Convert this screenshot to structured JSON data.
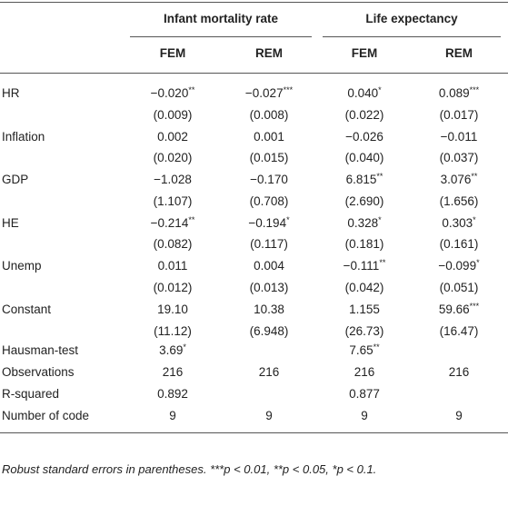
{
  "table": {
    "groups": [
      "Infant mortality rate",
      "Life expectancy"
    ],
    "columns": [
      "FEM",
      "REM",
      "FEM",
      "REM"
    ],
    "rows": [
      {
        "label": "HR",
        "coef": [
          {
            "value": "−0.020",
            "stars": "**"
          },
          {
            "value": "−0.027",
            "stars": "***"
          },
          {
            "value": "0.040",
            "stars": "*"
          },
          {
            "value": "0.089",
            "stars": "***"
          }
        ],
        "se": [
          "(0.009)",
          "(0.008)",
          "(0.022)",
          "(0.017)"
        ]
      },
      {
        "label": "Inflation",
        "coef": [
          {
            "value": "0.002"
          },
          {
            "value": "0.001"
          },
          {
            "value": "−0.026"
          },
          {
            "value": "−0.011"
          }
        ],
        "se": [
          "(0.020)",
          "(0.015)",
          "(0.040)",
          "(0.037)"
        ]
      },
      {
        "label": "GDP",
        "coef": [
          {
            "value": "−1.028"
          },
          {
            "value": "−0.170"
          },
          {
            "value": "6.815",
            "stars": "**"
          },
          {
            "value": "3.076",
            "stars": "**"
          }
        ],
        "se": [
          "(1.107)",
          "(0.708)",
          "(2.690)",
          "(1.656)"
        ]
      },
      {
        "label": "HE",
        "coef": [
          {
            "value": "−0.214",
            "stars": "**"
          },
          {
            "value": "−0.194",
            "stars": "*"
          },
          {
            "value": "0.328",
            "stars": "*"
          },
          {
            "value": "0.303",
            "stars": "*"
          }
        ],
        "se": [
          "(0.082)",
          "(0.117)",
          "(0.181)",
          "(0.161)"
        ]
      },
      {
        "label": "Unemp",
        "coef": [
          {
            "value": "0.011"
          },
          {
            "value": "0.004"
          },
          {
            "value": "−0.111",
            "stars": "**"
          },
          {
            "value": "−0.099",
            "stars": "*"
          }
        ],
        "se": [
          "(0.012)",
          "(0.013)",
          "(0.042)",
          "(0.051)"
        ]
      },
      {
        "label": "Constant",
        "coef": [
          {
            "value": "19.10"
          },
          {
            "value": "10.38"
          },
          {
            "value": "1.155"
          },
          {
            "value": "59.66",
            "stars": "***"
          }
        ],
        "se": [
          "(11.12)",
          "(6.948)",
          "(26.73)",
          "(16.47)"
        ]
      }
    ],
    "stats": [
      {
        "label": "Hausman-test",
        "cells": [
          {
            "value": "3.69",
            "stars": "*"
          },
          null,
          {
            "value": "7.65",
            "stars": "**"
          },
          null
        ]
      },
      {
        "label": "Observations",
        "cells": [
          {
            "value": "216"
          },
          {
            "value": "216"
          },
          {
            "value": "216"
          },
          {
            "value": "216"
          }
        ]
      },
      {
        "label": "R-squared",
        "cells": [
          {
            "value": "0.892"
          },
          null,
          {
            "value": "0.877"
          },
          null
        ]
      },
      {
        "label": "Number of code",
        "cells": [
          {
            "value": "9"
          },
          {
            "value": "9"
          },
          {
            "value": "9"
          },
          {
            "value": "9"
          }
        ]
      }
    ],
    "note": "Robust standard errors in parentheses. ***p < 0.01, **p < 0.05, *p < 0.1."
  }
}
